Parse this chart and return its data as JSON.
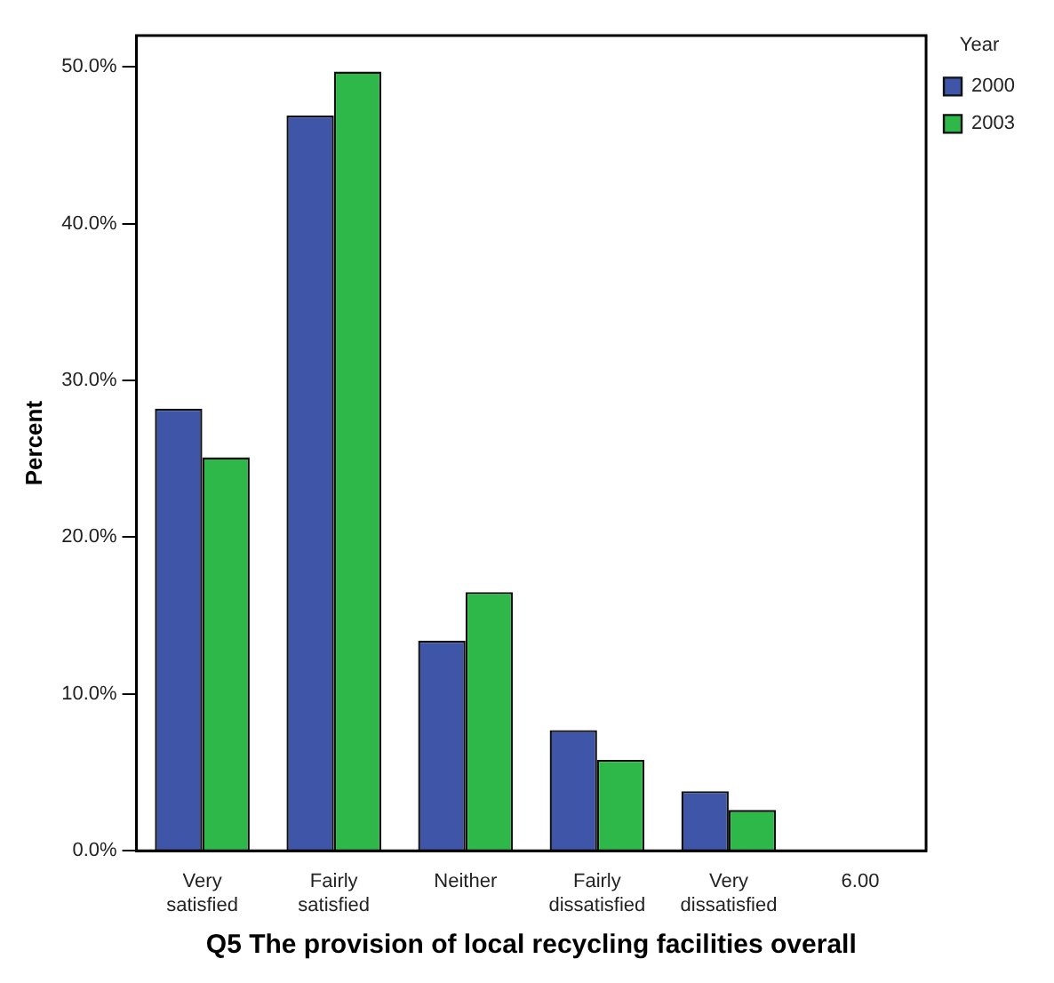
{
  "chart_data": {
    "type": "bar",
    "xlabel": "Q5 The provision of local recycling facilities overall",
    "ylabel": "Percent",
    "legend_title": "Year",
    "legend": "top right",
    "categories": [
      "Very satisfied",
      "Fairly satisfied",
      "Neither",
      "Fairly dissatisfied",
      "Very dissatisfied",
      "6.00"
    ],
    "series": [
      {
        "name": "2000",
        "color": "#3f55a8",
        "values": [
          28.2,
          46.9,
          13.4,
          7.7,
          3.8,
          0
        ]
      },
      {
        "name": "2003",
        "color": "#2fb84a",
        "values": [
          25.1,
          49.7,
          16.5,
          5.8,
          2.6,
          0
        ]
      }
    ],
    "ylim": [
      0,
      52
    ],
    "yticks": [
      {
        "value": 0,
        "label": "0.0%"
      },
      {
        "value": 10,
        "label": "10.0%"
      },
      {
        "value": 20,
        "label": "20.0%"
      },
      {
        "value": 30,
        "label": "30.0%"
      },
      {
        "value": 40,
        "label": "40.0%"
      },
      {
        "value": 50,
        "label": "50.0%"
      }
    ],
    "grid": false
  }
}
